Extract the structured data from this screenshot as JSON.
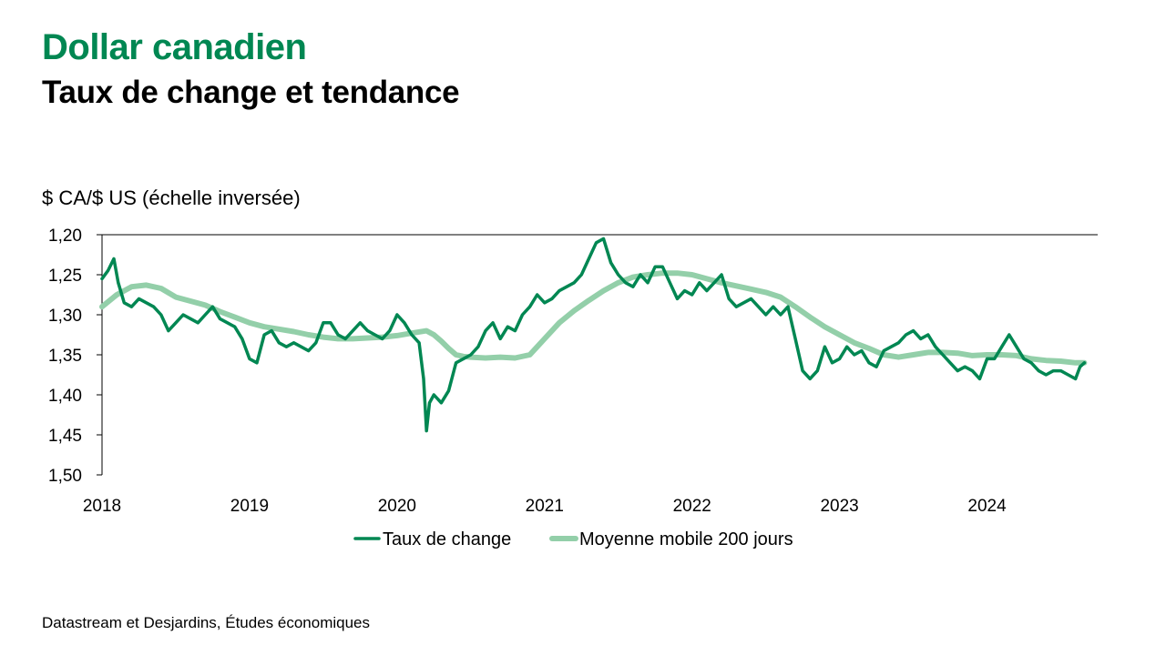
{
  "header": {
    "title": "Dollar canadien",
    "subtitle": "Taux de change et tendance"
  },
  "footer": {
    "source": "Datastream et Desjardins, Études économiques"
  },
  "chart_data": {
    "type": "line",
    "ylabel": "$ CA/$ US (échelle inversée)",
    "y_inverted": true,
    "ylim": [
      1.2,
      1.5
    ],
    "y_ticks": [
      "1,20",
      "1,25",
      "1,30",
      "1,35",
      "1,40",
      "1,45",
      "1,50"
    ],
    "y_tick_values": [
      1.2,
      1.25,
      1.3,
      1.35,
      1.4,
      1.45,
      1.5
    ],
    "xlim": [
      2018.0,
      2024.75
    ],
    "x_ticks": [
      "2018",
      "2019",
      "2020",
      "2021",
      "2022",
      "2023",
      "2024"
    ],
    "x_tick_values": [
      2018,
      2019,
      2020,
      2021,
      2022,
      2023,
      2024
    ],
    "grid": false,
    "legend_position": "bottom",
    "colors": {
      "rate": "#008752",
      "trend": "#93cfa9"
    },
    "series": [
      {
        "name": "Taux de change",
        "key": "rate",
        "x": [
          2018.0,
          2018.04,
          2018.08,
          2018.11,
          2018.15,
          2018.2,
          2018.25,
          2018.3,
          2018.35,
          2018.4,
          2018.45,
          2018.5,
          2018.55,
          2018.6,
          2018.65,
          2018.7,
          2018.75,
          2018.8,
          2018.85,
          2018.9,
          2018.95,
          2019.0,
          2019.05,
          2019.1,
          2019.15,
          2019.2,
          2019.25,
          2019.3,
          2019.35,
          2019.4,
          2019.45,
          2019.5,
          2019.55,
          2019.6,
          2019.65,
          2019.7,
          2019.75,
          2019.8,
          2019.85,
          2019.9,
          2019.95,
          2020.0,
          2020.05,
          2020.1,
          2020.15,
          2020.18,
          2020.2,
          2020.22,
          2020.25,
          2020.3,
          2020.35,
          2020.4,
          2020.45,
          2020.5,
          2020.55,
          2020.6,
          2020.65,
          2020.7,
          2020.75,
          2020.8,
          2020.85,
          2020.9,
          2020.95,
          2021.0,
          2021.05,
          2021.1,
          2021.15,
          2021.2,
          2021.25,
          2021.3,
          2021.35,
          2021.4,
          2021.45,
          2021.5,
          2021.55,
          2021.6,
          2021.65,
          2021.7,
          2021.75,
          2021.8,
          2021.85,
          2021.9,
          2021.95,
          2022.0,
          2022.05,
          2022.1,
          2022.15,
          2022.2,
          2022.25,
          2022.3,
          2022.35,
          2022.4,
          2022.45,
          2022.5,
          2022.55,
          2022.6,
          2022.65,
          2022.7,
          2022.75,
          2022.8,
          2022.85,
          2022.9,
          2022.95,
          2023.0,
          2023.05,
          2023.1,
          2023.15,
          2023.2,
          2023.25,
          2023.3,
          2023.35,
          2023.4,
          2023.45,
          2023.5,
          2023.55,
          2023.6,
          2023.65,
          2023.7,
          2023.75,
          2023.8,
          2023.85,
          2023.9,
          2023.95,
          2024.0,
          2024.05,
          2024.1,
          2024.15,
          2024.2,
          2024.25,
          2024.3,
          2024.35,
          2024.4,
          2024.45,
          2024.5,
          2024.55,
          2024.6,
          2024.63,
          2024.66
        ],
        "y": [
          1.255,
          1.245,
          1.23,
          1.26,
          1.285,
          1.29,
          1.28,
          1.285,
          1.29,
          1.3,
          1.32,
          1.31,
          1.3,
          1.305,
          1.31,
          1.3,
          1.29,
          1.305,
          1.31,
          1.315,
          1.33,
          1.355,
          1.36,
          1.325,
          1.32,
          1.335,
          1.34,
          1.335,
          1.34,
          1.345,
          1.335,
          1.31,
          1.31,
          1.325,
          1.33,
          1.32,
          1.31,
          1.32,
          1.325,
          1.33,
          1.32,
          1.3,
          1.31,
          1.325,
          1.335,
          1.38,
          1.445,
          1.41,
          1.4,
          1.41,
          1.395,
          1.36,
          1.355,
          1.35,
          1.34,
          1.32,
          1.31,
          1.33,
          1.315,
          1.32,
          1.3,
          1.29,
          1.275,
          1.285,
          1.28,
          1.27,
          1.265,
          1.26,
          1.25,
          1.23,
          1.21,
          1.205,
          1.235,
          1.25,
          1.26,
          1.265,
          1.25,
          1.26,
          1.24,
          1.24,
          1.26,
          1.28,
          1.27,
          1.275,
          1.26,
          1.27,
          1.26,
          1.25,
          1.28,
          1.29,
          1.285,
          1.28,
          1.29,
          1.3,
          1.29,
          1.3,
          1.29,
          1.33,
          1.37,
          1.38,
          1.37,
          1.34,
          1.36,
          1.355,
          1.34,
          1.35,
          1.345,
          1.36,
          1.365,
          1.345,
          1.34,
          1.335,
          1.325,
          1.32,
          1.33,
          1.325,
          1.34,
          1.35,
          1.36,
          1.37,
          1.365,
          1.37,
          1.38,
          1.355,
          1.355,
          1.34,
          1.325,
          1.34,
          1.355,
          1.36,
          1.37,
          1.375,
          1.37,
          1.37,
          1.375,
          1.38,
          1.365,
          1.36
        ]
      },
      {
        "name": "Moyenne mobile 200 jours",
        "key": "trend",
        "x": [
          2018.0,
          2018.1,
          2018.2,
          2018.3,
          2018.4,
          2018.5,
          2018.6,
          2018.7,
          2018.8,
          2018.9,
          2019.0,
          2019.1,
          2019.2,
          2019.3,
          2019.4,
          2019.5,
          2019.6,
          2019.7,
          2019.8,
          2019.9,
          2020.0,
          2020.1,
          2020.2,
          2020.25,
          2020.3,
          2020.35,
          2020.4,
          2020.45,
          2020.5,
          2020.6,
          2020.7,
          2020.8,
          2020.9,
          2021.0,
          2021.1,
          2021.2,
          2021.3,
          2021.4,
          2021.5,
          2021.6,
          2021.7,
          2021.8,
          2021.9,
          2022.0,
          2022.1,
          2022.2,
          2022.3,
          2022.4,
          2022.5,
          2022.6,
          2022.7,
          2022.8,
          2022.9,
          2023.0,
          2023.1,
          2023.2,
          2023.3,
          2023.4,
          2023.5,
          2023.6,
          2023.7,
          2023.8,
          2023.9,
          2024.0,
          2024.1,
          2024.2,
          2024.3,
          2024.4,
          2024.5,
          2024.6,
          2024.66
        ],
        "y": [
          1.29,
          1.275,
          1.265,
          1.263,
          1.267,
          1.278,
          1.283,
          1.288,
          1.296,
          1.303,
          1.31,
          1.315,
          1.318,
          1.321,
          1.325,
          1.328,
          1.33,
          1.33,
          1.329,
          1.328,
          1.326,
          1.323,
          1.32,
          1.325,
          1.333,
          1.342,
          1.35,
          1.352,
          1.353,
          1.354,
          1.353,
          1.354,
          1.35,
          1.33,
          1.31,
          1.295,
          1.282,
          1.27,
          1.26,
          1.253,
          1.25,
          1.248,
          1.248,
          1.25,
          1.255,
          1.26,
          1.264,
          1.268,
          1.272,
          1.278,
          1.29,
          1.303,
          1.315,
          1.325,
          1.335,
          1.342,
          1.35,
          1.353,
          1.35,
          1.347,
          1.347,
          1.348,
          1.351,
          1.35,
          1.35,
          1.351,
          1.355,
          1.357,
          1.358,
          1.36,
          1.36
        ]
      }
    ]
  }
}
